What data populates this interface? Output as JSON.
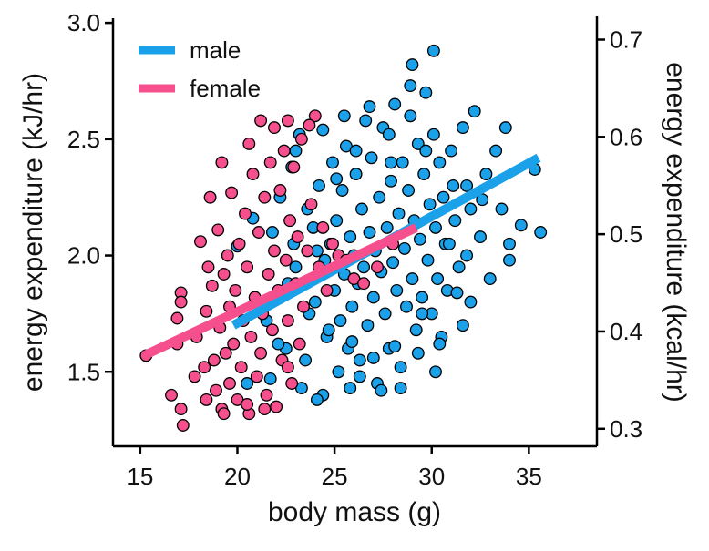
{
  "chart_data": {
    "type": "scatter",
    "title": "",
    "xlabel": "body mass (g)",
    "ylabel": "energy expenditure (kJ/hr)",
    "y2label": "energy expenditure (kcal/hr)",
    "xlim": [
      13.6,
      38.5
    ],
    "ylim": [
      1.18,
      3.02
    ],
    "y2lim": [
      0.282,
      0.722
    ],
    "xticks": [
      15,
      20,
      25,
      30,
      35
    ],
    "yticks": [
      1.5,
      2.0,
      2.5,
      3.0
    ],
    "y2ticks": [
      0.3,
      0.4,
      0.5,
      0.6,
      0.7
    ],
    "grid": false,
    "legend_position": "top-left",
    "series": [
      {
        "name": "male",
        "color": "#1aa1ea",
        "fit": {
          "x": [
            19.8,
            35.5
          ],
          "y": [
            1.7,
            2.42
          ]
        },
        "points": [
          [
            20.0,
            2.04
          ],
          [
            20.5,
            1.45
          ],
          [
            21.5,
            1.72
          ],
          [
            22.2,
            2.25
          ],
          [
            22.5,
            1.6
          ],
          [
            22.8,
            2.38
          ],
          [
            23.0,
            1.95
          ],
          [
            23.2,
            2.52
          ],
          [
            23.5,
            1.55
          ],
          [
            23.7,
            1.75
          ],
          [
            23.9,
            2.12
          ],
          [
            24.0,
            1.8
          ],
          [
            24.2,
            2.3
          ],
          [
            24.4,
            1.4
          ],
          [
            24.5,
            1.98
          ],
          [
            24.6,
            1.65
          ],
          [
            24.8,
            2.05
          ],
          [
            24.9,
            2.4
          ],
          [
            25.0,
            1.85
          ],
          [
            25.1,
            2.15
          ],
          [
            25.2,
            1.5
          ],
          [
            25.3,
            1.72
          ],
          [
            25.4,
            2.28
          ],
          [
            25.5,
            1.92
          ],
          [
            25.6,
            2.47
          ],
          [
            25.7,
            1.6
          ],
          [
            25.8,
            2.08
          ],
          [
            25.9,
            1.78
          ],
          [
            26.0,
            2.0
          ],
          [
            26.1,
            2.35
          ],
          [
            26.2,
            1.88
          ],
          [
            26.3,
            1.55
          ],
          [
            26.4,
            2.2
          ],
          [
            26.5,
            1.95
          ],
          [
            26.6,
            2.58
          ],
          [
            26.7,
            1.7
          ],
          [
            26.8,
            2.1
          ],
          [
            26.9,
            2.42
          ],
          [
            27.0,
            1.82
          ],
          [
            27.1,
            2.02
          ],
          [
            27.2,
            1.45
          ],
          [
            27.3,
            2.25
          ],
          [
            27.4,
            1.93
          ],
          [
            27.5,
            2.55
          ],
          [
            27.6,
            1.75
          ],
          [
            27.7,
            2.12
          ],
          [
            27.8,
            1.6
          ],
          [
            27.9,
            2.32
          ],
          [
            28.0,
            1.97
          ],
          [
            28.1,
            2.65
          ],
          [
            28.2,
            1.85
          ],
          [
            28.3,
            2.18
          ],
          [
            28.4,
            1.52
          ],
          [
            28.5,
            2.4
          ],
          [
            28.6,
            2.03
          ],
          [
            28.7,
            1.78
          ],
          [
            28.8,
            2.28
          ],
          [
            28.9,
            2.6
          ],
          [
            29.0,
            1.9
          ],
          [
            29.1,
            2.15
          ],
          [
            29.2,
            1.68
          ],
          [
            29.3,
            2.48
          ],
          [
            29.4,
            2.07
          ],
          [
            29.5,
            1.82
          ],
          [
            29.6,
            2.35
          ],
          [
            29.7,
            2.7
          ],
          [
            29.8,
            1.98
          ],
          [
            29.9,
            2.22
          ],
          [
            30.0,
            1.75
          ],
          [
            30.1,
            2.52
          ],
          [
            30.2,
            2.12
          ],
          [
            30.3,
            1.9
          ],
          [
            30.4,
            2.4
          ],
          [
            30.5,
            1.65
          ],
          [
            30.6,
            2.25
          ],
          [
            30.7,
            2.05
          ],
          [
            30.8,
            1.85
          ],
          [
            31.0,
            2.45
          ],
          [
            31.2,
            2.15
          ],
          [
            31.4,
            1.95
          ],
          [
            31.6,
            2.55
          ],
          [
            31.8,
            2.3
          ],
          [
            32.0,
            1.8
          ],
          [
            32.2,
            2.62
          ],
          [
            32.5,
            2.08
          ],
          [
            32.8,
            2.35
          ],
          [
            33.0,
            1.9
          ],
          [
            33.3,
            2.45
          ],
          [
            33.6,
            2.2
          ],
          [
            34.0,
            2.05
          ],
          [
            34.6,
            2.13
          ],
          [
            35.3,
            2.37
          ],
          [
            35.6,
            2.1
          ],
          [
            30.1,
            2.88
          ],
          [
            29.0,
            2.82
          ],
          [
            30.2,
            1.5
          ],
          [
            31.6,
            1.7
          ],
          [
            34.0,
            1.98
          ],
          [
            26.3,
            1.48
          ],
          [
            25.8,
            1.43
          ],
          [
            27.4,
            1.42
          ],
          [
            24.1,
            1.38
          ],
          [
            23.3,
            1.43
          ],
          [
            28.4,
            1.43
          ],
          [
            22.1,
            1.62
          ],
          [
            21.7,
            1.47
          ],
          [
            29.5,
            1.75
          ],
          [
            31.3,
            1.84
          ],
          [
            32.6,
            2.24
          ],
          [
            33.8,
            2.55
          ],
          [
            26.8,
            2.64
          ],
          [
            28.9,
            2.73
          ],
          [
            25.5,
            2.6
          ],
          [
            24.4,
            2.54
          ],
          [
            27.8,
            2.52
          ],
          [
            23.0,
            2.45
          ],
          [
            21.8,
            2.1
          ],
          [
            20.8,
            2.16
          ],
          [
            22.6,
            1.88
          ],
          [
            23.6,
            2.2
          ],
          [
            24.7,
            1.68
          ],
          [
            25.9,
            1.63
          ],
          [
            27.0,
            1.56
          ],
          [
            28.1,
            1.61
          ],
          [
            29.3,
            1.58
          ],
          [
            30.4,
            1.62
          ],
          [
            26.1,
            2.45
          ],
          [
            27.9,
            2.4
          ],
          [
            29.7,
            2.45
          ],
          [
            31.1,
            2.3
          ],
          [
            32.0,
            2.2
          ],
          [
            25.1,
            2.33
          ],
          [
            24.1,
            2.02
          ],
          [
            22.9,
            2.05
          ],
          [
            30.9,
            2.05
          ],
          [
            31.8,
            2.0
          ]
        ]
      },
      {
        "name": "female",
        "color": "#f5508d",
        "fit": {
          "x": [
            15.2,
            29.2
          ],
          "y": [
            1.57,
            2.12
          ]
        },
        "points": [
          [
            15.3,
            1.57
          ],
          [
            16.6,
            1.4
          ],
          [
            17.1,
            1.34
          ],
          [
            17.2,
            1.27
          ],
          [
            16.9,
            1.62
          ],
          [
            16.9,
            1.73
          ],
          [
            17.1,
            1.84
          ],
          [
            17.1,
            1.8
          ],
          [
            17.8,
            1.48
          ],
          [
            17.9,
            1.65
          ],
          [
            18.1,
            2.06
          ],
          [
            18.3,
            1.52
          ],
          [
            18.4,
            1.38
          ],
          [
            18.7,
            1.87
          ],
          [
            18.5,
            1.95
          ],
          [
            18.4,
            1.76
          ],
          [
            18.8,
            1.55
          ],
          [
            18.9,
            1.42
          ],
          [
            19.0,
            2.11
          ],
          [
            19.1,
            1.69
          ],
          [
            19.2,
            1.34
          ],
          [
            19.3,
            1.92
          ],
          [
            19.4,
            1.58
          ],
          [
            19.5,
            2.0
          ],
          [
            19.6,
            1.45
          ],
          [
            19.6,
            1.78
          ],
          [
            19.7,
            2.27
          ],
          [
            19.8,
            1.62
          ],
          [
            19.9,
            1.85
          ],
          [
            20.0,
            1.38
          ],
          [
            20.1,
            2.05
          ],
          [
            20.2,
            1.52
          ],
          [
            20.3,
            1.72
          ],
          [
            20.4,
            2.18
          ],
          [
            20.5,
            1.95
          ],
          [
            20.6,
            1.32
          ],
          [
            20.7,
            1.65
          ],
          [
            20.8,
            2.35
          ],
          [
            20.9,
            1.82
          ],
          [
            21.0,
            1.48
          ],
          [
            21.1,
            2.1
          ],
          [
            21.2,
            1.58
          ],
          [
            21.2,
            2.58
          ],
          [
            21.3,
            1.75
          ],
          [
            21.4,
            2.25
          ],
          [
            21.5,
            1.4
          ],
          [
            21.6,
            1.92
          ],
          [
            21.7,
            2.4
          ],
          [
            21.8,
            1.68
          ],
          [
            21.9,
            2.02
          ],
          [
            22.0,
            1.35
          ],
          [
            22.1,
            1.85
          ],
          [
            22.2,
            2.28
          ],
          [
            22.3,
            1.55
          ],
          [
            22.4,
            2.45
          ],
          [
            22.5,
            1.98
          ],
          [
            22.6,
            1.72
          ],
          [
            22.7,
            2.15
          ],
          [
            22.8,
            1.45
          ],
          [
            22.9,
            2.38
          ],
          [
            23.0,
            1.88
          ],
          [
            23.1,
            2.08
          ],
          [
            23.2,
            1.62
          ],
          [
            23.3,
            2.5
          ],
          [
            23.4,
            1.78
          ],
          [
            23.6,
            2.02
          ],
          [
            23.8,
            2.22
          ],
          [
            24.0,
            2.6
          ],
          [
            24.2,
            1.95
          ],
          [
            24.4,
            2.12
          ],
          [
            24.6,
            1.85
          ],
          [
            24.9,
            2.05
          ],
          [
            25.2,
            2.0
          ],
          [
            25.6,
            1.98
          ],
          [
            26.0,
            1.9
          ],
          [
            26.5,
            1.88
          ],
          [
            27.2,
            1.95
          ],
          [
            28.0,
            2.05
          ],
          [
            18.6,
            2.25
          ],
          [
            19.2,
            2.4
          ],
          [
            20.6,
            2.48
          ],
          [
            21.9,
            2.55
          ],
          [
            22.6,
            2.58
          ],
          [
            23.7,
            2.56
          ],
          [
            19.3,
            1.32
          ],
          [
            20.5,
            1.36
          ],
          [
            21.4,
            1.34
          ],
          [
            22.6,
            1.52
          ]
        ]
      }
    ]
  }
}
